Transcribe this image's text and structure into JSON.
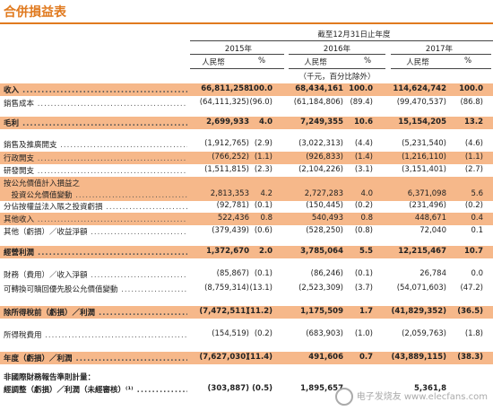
{
  "title": "合併損益表",
  "header": {
    "period": "截至12月31日止年度",
    "years": [
      "2015年",
      "2016年",
      "2017年"
    ],
    "currency": "人民幣",
    "pct": "%",
    "unit_note": "（千元，百分比除外）"
  },
  "rows": [
    {
      "label": "收入",
      "v15": "66,811,258",
      "p15": "100.0",
      "v16": "68,434,161",
      "p16": "100.0",
      "v17": "114,624,742",
      "p17": "100.0",
      "hl": true,
      "bold": true
    },
    {
      "label": "銷售成本",
      "v15": "(64,111,325)",
      "p15": "(96.0)",
      "v16": "(61,184,806)",
      "p16": "(89.4)",
      "v17": "(99,470,537)",
      "p17": "(86.8)"
    },
    {
      "label": "毛利",
      "v15": "2,699,933",
      "p15": "4.0",
      "v16": "7,249,355",
      "p16": "10.6",
      "v17": "15,154,205",
      "p17": "13.2",
      "hl": true,
      "bold": true
    },
    {
      "label": "銷售及推廣開支",
      "v15": "(1,912,765)",
      "p15": "(2.9)",
      "v16": "(3,022,313)",
      "p16": "(4.4)",
      "v17": "(5,231,540)",
      "p17": "(4.6)"
    },
    {
      "label": "行政開支",
      "v15": "(766,252)",
      "p15": "(1.1)",
      "v16": "(926,833)",
      "p16": "(1.4)",
      "v17": "(1,216,110)",
      "p17": "(1.1)",
      "hl": true
    },
    {
      "label": "研發開支",
      "v15": "(1,511,815)",
      "p15": "(2.3)",
      "v16": "(2,104,226)",
      "p16": "(3.1)",
      "v17": "(3,151,401)",
      "p17": "(2.7)"
    },
    {
      "label": "按公允價值計入損益之",
      "v15": "",
      "p15": "",
      "v16": "",
      "p16": "",
      "v17": "",
      "p17": "",
      "hl": true,
      "nodots": true
    },
    {
      "label": "　投資公允價值變動",
      "v15": "2,813,353",
      "p15": "4.2",
      "v16": "2,727,283",
      "p16": "4.0",
      "v17": "6,371,098",
      "p17": "5.6",
      "hl": true
    },
    {
      "label": "分佔按權益法入賬之投資虧損",
      "v15": "(92,781)",
      "p15": "(0.1)",
      "v16": "(150,445)",
      "p16": "(0.2)",
      "v17": "(231,496)",
      "p17": "(0.2)"
    },
    {
      "label": "其他收入",
      "v15": "522,436",
      "p15": "0.8",
      "v16": "540,493",
      "p16": "0.8",
      "v17": "448,671",
      "p17": "0.4",
      "hl": true
    },
    {
      "label": "其他（虧損）／收益淨額",
      "v15": "(379,439)",
      "p15": "(0.6)",
      "v16": "(528,250)",
      "p16": "(0.8)",
      "v17": "72,040",
      "p17": "0.1"
    },
    {
      "label": "經營利潤",
      "v15": "1,372,670",
      "p15": "2.0",
      "v16": "3,785,064",
      "p16": "5.5",
      "v17": "12,215,467",
      "p17": "10.7",
      "hl": true,
      "bold": true
    },
    {
      "label": "財務（費用）／收入淨額",
      "v15": "(85,867)",
      "p15": "(0.1)",
      "v16": "(86,246)",
      "p16": "(0.1)",
      "v17": "26,784",
      "p17": "0.0"
    },
    {
      "label": "可轉換可贖回優先股公允價值變動",
      "v15": "(8,759,314)",
      "p15": "(13.1)",
      "v16": "(2,523,309)",
      "p16": "(3.7)",
      "v17": "(54,071,603)",
      "p17": "(47.2)"
    },
    {
      "label": "除所得稅前（虧損）／利潤",
      "v15": "(7,472,511)",
      "p15": "(11.2)",
      "v16": "1,175,509",
      "p16": "1.7",
      "v17": "(41,829,352)",
      "p17": "(36.5)",
      "hl": true,
      "bold": true
    },
    {
      "label": "所得稅費用",
      "v15": "(154,519)",
      "p15": "(0.2)",
      "v16": "(683,903)",
      "p16": "(1.0)",
      "v17": "(2,059,763)",
      "p17": "(1.8)"
    },
    {
      "label": "年度（虧損）／利潤",
      "v15": "(7,627,030)",
      "p15": "(11.4)",
      "v16": "491,606",
      "p16": "0.7",
      "v17": "(43,889,115)",
      "p17": "(38.3)",
      "hl": true,
      "bold": true
    },
    {
      "label": "非國際財務報告準則計量：",
      "v15": "",
      "p15": "",
      "v16": "",
      "p16": "",
      "v17": "",
      "p17": "",
      "bold": true,
      "nodots": true
    },
    {
      "label": "經調整（虧損）／利潤（未經審核）⁽¹⁾",
      "v15": "(303,887)",
      "p15": "(0.5)",
      "v16": "1,895,657",
      "p16": "",
      "v17": "5,361,8",
      "p17": "",
      "bold": true
    }
  ],
  "watermark": "电子发烧友 www.elecfans.com"
}
